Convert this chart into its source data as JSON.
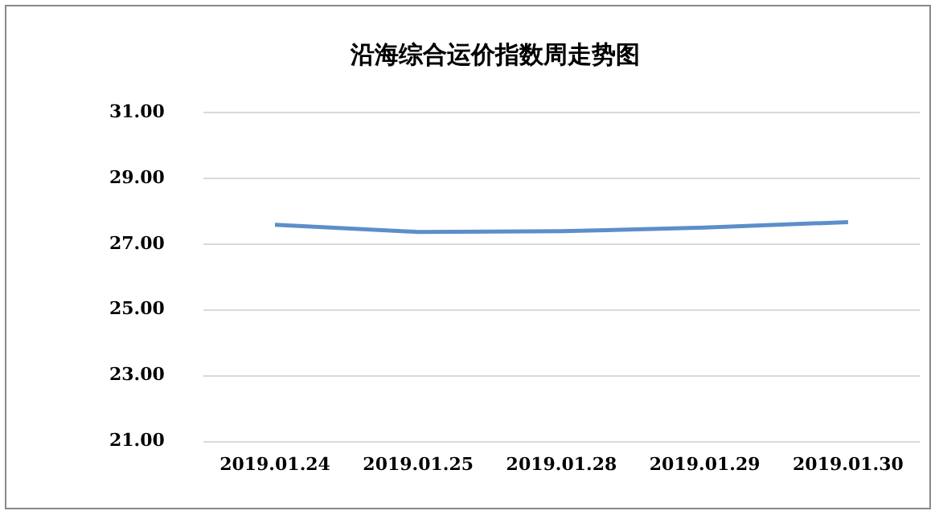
{
  "chart_data": {
    "type": "line",
    "title": "沿海综合运价指数周走势图",
    "categories": [
      "2019.01.24",
      "2019.01.25",
      "2019.01.28",
      "2019.01.29",
      "2019.01.30"
    ],
    "series": [
      {
        "color": "#5b8fc9",
        "values": [
          27.59,
          27.37,
          27.39,
          27.5,
          27.67
        ]
      }
    ],
    "ylim": [
      21,
      31
    ],
    "yticks": [
      {
        "value": 21,
        "label": "21.00"
      },
      {
        "value": 23,
        "label": "23.00"
      },
      {
        "value": 25,
        "label": "25.00"
      },
      {
        "value": 27,
        "label": "27.00"
      },
      {
        "value": 29,
        "label": "29.00"
      },
      {
        "value": 31,
        "label": "31.00"
      }
    ],
    "grid": "y",
    "legend": false,
    "marker": "none",
    "line_style": "solid"
  }
}
